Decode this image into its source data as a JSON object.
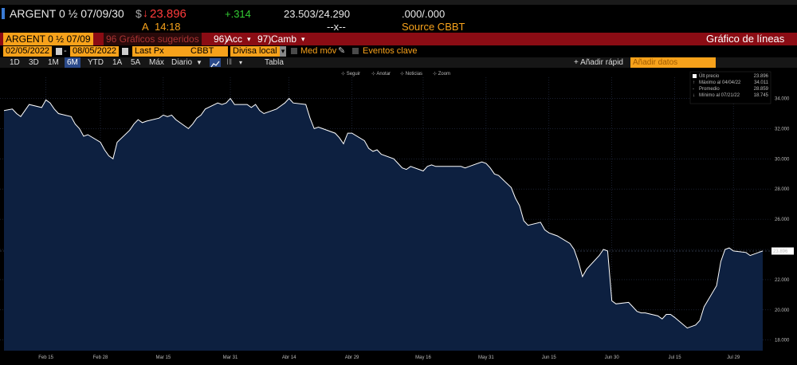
{
  "header": {
    "ticker": "ARGENT 0 ½ 07/09/30",
    "currency_symbol": "$",
    "price": "23.896",
    "time_prefix": "A",
    "time": "14:18",
    "change": "+.314",
    "bid_ask": "23.503/24.290",
    "bid_ask_size": "--x--",
    "yield_pair": ".000/.000",
    "source": "Source CBBT",
    "colors": {
      "down": "#ff3b3b",
      "up": "#33cc33",
      "text": "#e8e8e8"
    }
  },
  "redbar": {
    "security": "ARGENT 0 ½ 07/09",
    "suggested_charts": "96 Gráficos sugeridos",
    "actions_num": "96)",
    "actions": "Acc",
    "change_num": "97)",
    "change": "Camb",
    "chart_type": "Gráfico de líneas"
  },
  "controls": {
    "start_date": "02/05/2022",
    "end_date": "08/05/2022",
    "field": "Last Px",
    "source": "CBBT",
    "currency": "Divisa local",
    "moving_avg": "Med móv",
    "key_events": "Eventos clave"
  },
  "range": {
    "buttons": [
      "1D",
      "3D",
      "1M",
      "6M",
      "YTD",
      "1A",
      "5A",
      "Máx"
    ],
    "selected": "6M",
    "frequency": "Diario",
    "table": "Tabla",
    "add_quick": "+ Añadir rápid",
    "add_data": "Añadir datos"
  },
  "chart_toolbar": [
    "Seguir",
    "Anotar",
    "Noticias",
    "Zoom"
  ],
  "legend": {
    "rows": [
      {
        "label": "Últ precio",
        "value": "23.896"
      },
      {
        "label": "Máximo al 04/04/22",
        "value": "34.011"
      },
      {
        "label": "Promedio",
        "value": "28.859"
      },
      {
        "label": "Mínimo al 07/21/22",
        "value": "18.745"
      }
    ]
  },
  "chart_data": {
    "type": "area",
    "title": "",
    "xlabel": "",
    "ylabel": "",
    "ylim": [
      17.3,
      35.4
    ],
    "y_ticks": [
      18,
      20,
      22,
      24,
      26,
      28,
      30,
      32,
      34
    ],
    "y_tick_labels": [
      "18.000",
      "20.000",
      "22.000",
      "24.000",
      "26.000",
      "28.000",
      "30.000",
      "32.000",
      "34.000"
    ],
    "x_tick_labels": [
      "Feb 15",
      "Feb 28",
      "Mar 15",
      "Mar 31",
      "Abr 14",
      "Abr 29",
      "May 16",
      "May 31",
      "Jun 15",
      "Jun 30",
      "Jul 15",
      "Jul 29"
    ],
    "x_tick_dates": [
      "2022-02-15",
      "2022-02-28",
      "2022-03-15",
      "2022-03-31",
      "2022-04-14",
      "2022-04-29",
      "2022-05-16",
      "2022-05-31",
      "2022-06-15",
      "2022-06-30",
      "2022-07-15",
      "2022-07-29"
    ],
    "last_price_label": "23.896",
    "last_price": 23.896,
    "grid": true,
    "colors": {
      "fill": "#0d2040",
      "line": "#ffffff",
      "background": "#000000"
    },
    "series": [
      {
        "x": [
          "2022-02-05",
          "2022-02-07",
          "2022-02-08",
          "2022-02-09",
          "2022-02-10",
          "2022-02-11",
          "2022-02-14",
          "2022-02-15",
          "2022-02-16",
          "2022-02-17",
          "2022-02-18",
          "2022-02-21",
          "2022-02-22",
          "2022-02-23",
          "2022-02-24",
          "2022-02-25",
          "2022-02-28",
          "2022-03-01",
          "2022-03-02",
          "2022-03-03",
          "2022-03-04",
          "2022-03-07",
          "2022-03-08",
          "2022-03-09",
          "2022-03-10",
          "2022-03-11",
          "2022-03-14",
          "2022-03-15",
          "2022-03-16",
          "2022-03-17",
          "2022-03-18",
          "2022-03-21",
          "2022-03-22",
          "2022-03-23",
          "2022-03-24",
          "2022-03-25",
          "2022-03-28",
          "2022-03-29",
          "2022-03-30",
          "2022-03-31",
          "2022-04-01",
          "2022-04-04",
          "2022-04-05",
          "2022-04-06",
          "2022-04-07",
          "2022-04-08",
          "2022-04-11",
          "2022-04-12",
          "2022-04-13",
          "2022-04-14",
          "2022-04-15",
          "2022-04-18",
          "2022-04-19",
          "2022-04-20",
          "2022-04-21",
          "2022-04-22",
          "2022-04-25",
          "2022-04-26",
          "2022-04-27",
          "2022-04-28",
          "2022-04-29",
          "2022-05-02",
          "2022-05-03",
          "2022-05-04",
          "2022-05-05",
          "2022-05-06",
          "2022-05-09",
          "2022-05-10",
          "2022-05-11",
          "2022-05-12",
          "2022-05-13",
          "2022-05-16",
          "2022-05-17",
          "2022-05-18",
          "2022-05-19",
          "2022-05-20",
          "2022-05-23",
          "2022-05-24",
          "2022-05-25",
          "2022-05-26",
          "2022-05-27",
          "2022-05-30",
          "2022-05-31",
          "2022-06-01",
          "2022-06-02",
          "2022-06-03",
          "2022-06-06",
          "2022-06-07",
          "2022-06-08",
          "2022-06-09",
          "2022-06-10",
          "2022-06-13",
          "2022-06-14",
          "2022-06-15",
          "2022-06-16",
          "2022-06-17",
          "2022-06-20",
          "2022-06-21",
          "2022-06-22",
          "2022-06-23",
          "2022-06-24",
          "2022-06-27",
          "2022-06-28",
          "2022-06-29",
          "2022-06-30",
          "2022-07-01",
          "2022-07-04",
          "2022-07-05",
          "2022-07-06",
          "2022-07-07",
          "2022-07-08",
          "2022-07-11",
          "2022-07-12",
          "2022-07-13",
          "2022-07-14",
          "2022-07-15",
          "2022-07-18",
          "2022-07-19",
          "2022-07-20",
          "2022-07-21",
          "2022-07-22",
          "2022-07-25",
          "2022-07-26",
          "2022-07-27",
          "2022-07-28",
          "2022-07-29",
          "2022-08-01",
          "2022-08-02",
          "2022-08-03",
          "2022-08-04",
          "2022-08-05"
        ],
        "y": [
          33.2,
          33.3,
          33.0,
          32.8,
          33.2,
          33.6,
          33.4,
          33.9,
          33.7,
          33.3,
          33.0,
          32.8,
          32.3,
          32.0,
          31.5,
          31.6,
          31.1,
          30.6,
          30.2,
          30.0,
          31.1,
          31.9,
          32.3,
          32.6,
          32.4,
          32.5,
          32.7,
          32.9,
          32.8,
          32.9,
          32.6,
          32.0,
          32.3,
          32.7,
          32.9,
          33.3,
          33.7,
          33.6,
          33.7,
          34.0,
          33.6,
          33.6,
          33.4,
          33.6,
          33.2,
          33.0,
          33.3,
          33.5,
          33.7,
          34.0,
          33.7,
          33.6,
          32.7,
          32.0,
          32.1,
          32.0,
          31.7,
          31.4,
          31.0,
          31.7,
          31.7,
          31.2,
          30.7,
          30.5,
          30.6,
          30.3,
          30.0,
          29.7,
          29.4,
          29.3,
          29.5,
          29.2,
          29.5,
          29.6,
          29.5,
          29.5,
          29.5,
          29.5,
          29.5,
          29.4,
          29.5,
          29.8,
          29.7,
          29.4,
          29.0,
          28.9,
          28.1,
          27.4,
          26.9,
          25.9,
          25.6,
          25.8,
          25.3,
          25.1,
          25.0,
          24.9,
          24.4,
          24.0,
          23.2,
          22.2,
          22.7,
          23.6,
          24.0,
          23.9,
          20.6,
          20.4,
          20.5,
          20.2,
          19.9,
          19.8,
          19.8,
          19.6,
          19.4,
          19.7,
          19.7,
          19.5,
          18.8,
          18.9,
          19.0,
          19.3,
          20.2,
          21.6,
          23.2,
          24.0,
          24.1,
          23.9,
          23.8,
          23.6,
          23.7,
          23.8,
          23.9
        ]
      }
    ]
  }
}
